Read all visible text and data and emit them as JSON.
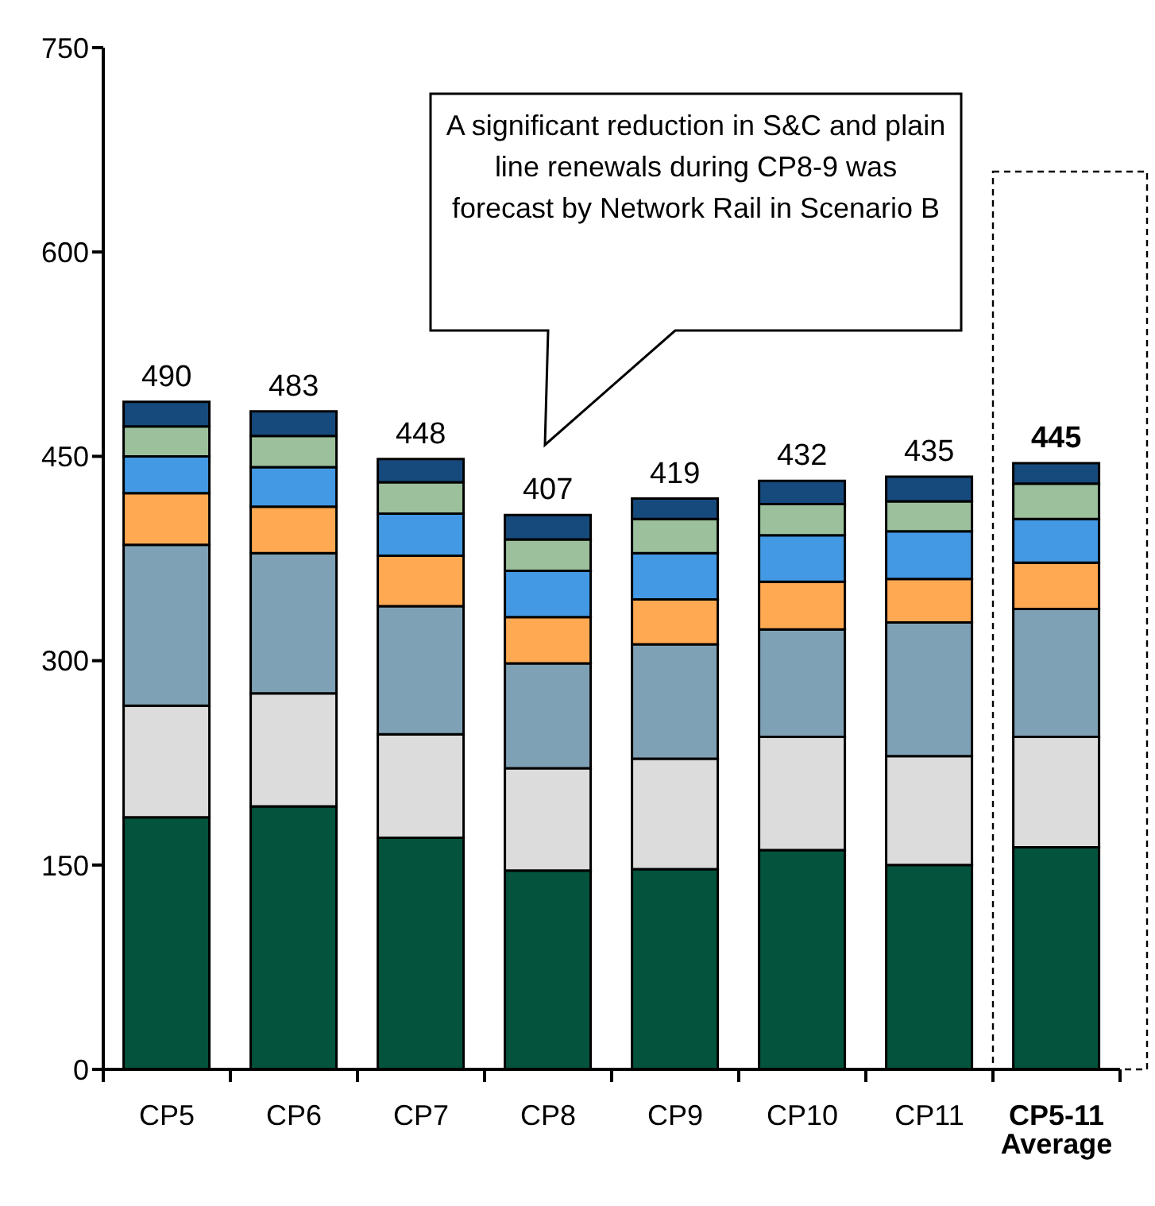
{
  "chart_data": {
    "type": "bar",
    "stacked": true,
    "categories": [
      "CP5",
      "CP6",
      "CP7",
      "CP8",
      "CP9",
      "CP10",
      "CP11",
      "CP5-11 Average"
    ],
    "series": [
      {
        "color": "#03533d",
        "values": [
          185,
          193,
          170,
          146,
          147,
          161,
          150,
          163
        ]
      },
      {
        "color": "#dcdcdc",
        "values": [
          82,
          83,
          76,
          75,
          81,
          83,
          80,
          81
        ]
      },
      {
        "color": "#7fa1b5",
        "values": [
          118,
          103,
          94,
          77,
          84,
          79,
          98,
          94
        ]
      },
      {
        "color": "#ffa952",
        "values": [
          38,
          34,
          37,
          34,
          33,
          35,
          32,
          34
        ]
      },
      {
        "color": "#4399e3",
        "values": [
          27,
          29,
          31,
          34,
          34,
          34,
          35,
          32
        ]
      },
      {
        "color": "#9cc09c",
        "values": [
          22,
          23,
          23,
          23,
          25,
          23,
          22,
          26
        ]
      },
      {
        "color": "#174a7c",
        "values": [
          18,
          18,
          17,
          18,
          15,
          17,
          18,
          15
        ]
      }
    ],
    "totals": [
      "490",
      "483",
      "448",
      "407",
      "419",
      "432",
      "435",
      "445"
    ],
    "ylim": [
      0,
      750
    ],
    "yticks": [
      0,
      150,
      300,
      450,
      600,
      750
    ],
    "grid": false,
    "legend": false,
    "annotations": [
      "A significant reduction in S&C and plain line renewals during CP8-9 was forecast by Network Rail in Scenario B"
    ]
  }
}
